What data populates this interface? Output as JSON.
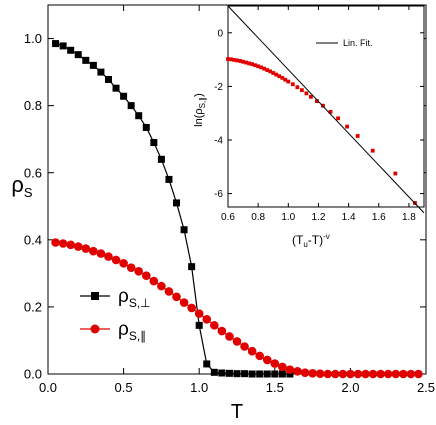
{
  "chart_data": [
    {
      "type": "line",
      "xlabel": "T",
      "ylabel": "ρ",
      "ylabel_sub": "S",
      "xlim": [
        0.0,
        2.5
      ],
      "ylim": [
        0.0,
        1.1
      ],
      "xticks": [
        "0.0",
        "0.5",
        "1.0",
        "1.5",
        "2.0",
        "2.5"
      ],
      "yticks": [
        "0.0",
        "0.2",
        "0.4",
        "0.6",
        "0.8",
        "1.0"
      ],
      "legend_position": "bottom-left",
      "series": [
        {
          "name": "ρ",
          "name_sub": "S,⊥",
          "color": "#000000",
          "marker": "square",
          "x": [
            0.05,
            0.1,
            0.15,
            0.2,
            0.25,
            0.3,
            0.35,
            0.4,
            0.45,
            0.5,
            0.55,
            0.6,
            0.65,
            0.7,
            0.75,
            0.8,
            0.85,
            0.9,
            0.95,
            1.0,
            1.05,
            1.1,
            1.15,
            1.2,
            1.25,
            1.3,
            1.35,
            1.4,
            1.45,
            1.5,
            1.55,
            1.6
          ],
          "y": [
            0.985,
            0.978,
            0.965,
            0.952,
            0.935,
            0.92,
            0.9,
            0.878,
            0.852,
            0.828,
            0.8,
            0.77,
            0.735,
            0.69,
            0.64,
            0.58,
            0.51,
            0.43,
            0.32,
            0.145,
            0.03,
            0.005,
            0.003,
            0.002,
            0.001,
            0.001,
            0.0,
            0.0,
            0.0,
            0.0,
            0.0,
            0.0
          ]
        },
        {
          "name": "ρ",
          "name_sub": "S,∥",
          "color": "#e00000",
          "marker": "circle",
          "x": [
            0.05,
            0.1,
            0.15,
            0.2,
            0.25,
            0.3,
            0.35,
            0.4,
            0.45,
            0.5,
            0.55,
            0.6,
            0.65,
            0.7,
            0.75,
            0.8,
            0.85,
            0.9,
            0.95,
            1.0,
            1.05,
            1.1,
            1.15,
            1.2,
            1.25,
            1.3,
            1.35,
            1.4,
            1.45,
            1.5,
            1.55,
            1.6,
            1.65,
            1.7,
            1.75,
            1.8,
            1.85,
            1.9,
            1.95,
            2.0,
            2.05,
            2.1,
            2.15,
            2.2,
            2.25,
            2.3,
            2.35,
            2.4,
            2.45
          ],
          "y": [
            0.392,
            0.389,
            0.385,
            0.38,
            0.374,
            0.366,
            0.359,
            0.35,
            0.34,
            0.33,
            0.317,
            0.306,
            0.293,
            0.277,
            0.262,
            0.246,
            0.23,
            0.213,
            0.197,
            0.18,
            0.163,
            0.145,
            0.128,
            0.112,
            0.097,
            0.082,
            0.068,
            0.054,
            0.042,
            0.031,
            0.021,
            0.013,
            0.008,
            0.004,
            0.002,
            0.001,
            0.0,
            0.0,
            0.0,
            0.0,
            0.0,
            0.0,
            0.0,
            0.0,
            0.0,
            0.0,
            0.0,
            0.0,
            0.0
          ]
        }
      ]
    },
    {
      "type": "scatter",
      "xlabel": "(T",
      "xlabel_sub": "u",
      "xlabel_post": "-T)",
      "xlabel_sup": "-ν",
      "ylabel": "ln(ρ",
      "ylabel_sub": "S,∥",
      "ylabel_post": ")",
      "xlim": [
        0.6,
        1.9
      ],
      "ylim": [
        -6.5,
        1.0
      ],
      "xticks": [
        "0.6",
        "0.8",
        "1.0",
        "1.2",
        "1.4",
        "1.6",
        "1.8"
      ],
      "yticks": [
        "0",
        "-2",
        "-4",
        "-6"
      ],
      "legend_position": "top-right",
      "series": [
        {
          "name": "",
          "color": "#e00000",
          "marker": "square",
          "x": [
            0.6,
            0.62,
            0.64,
            0.66,
            0.68,
            0.7,
            0.72,
            0.74,
            0.76,
            0.78,
            0.8,
            0.82,
            0.84,
            0.86,
            0.88,
            0.9,
            0.92,
            0.94,
            0.96,
            0.98,
            1.0,
            1.03,
            1.06,
            1.09,
            1.12,
            1.15,
            1.19,
            1.23,
            1.28,
            1.33,
            1.39,
            1.46,
            1.56,
            1.71,
            1.84
          ],
          "y": [
            -0.98,
            -0.99,
            -1.01,
            -1.03,
            -1.05,
            -1.08,
            -1.11,
            -1.14,
            -1.17,
            -1.21,
            -1.25,
            -1.29,
            -1.34,
            -1.39,
            -1.44,
            -1.5,
            -1.56,
            -1.62,
            -1.68,
            -1.75,
            -1.82,
            -1.92,
            -2.03,
            -2.14,
            -2.26,
            -2.39,
            -2.55,
            -2.72,
            -2.95,
            -3.19,
            -3.5,
            -3.85,
            -4.4,
            -5.25,
            -6.35
          ]
        },
        {
          "name": "Lin. Fit.",
          "color": "#000000",
          "marker": "none",
          "x": [
            0.6,
            1.9
          ],
          "y": [
            1.0,
            -6.72
          ]
        }
      ]
    }
  ]
}
